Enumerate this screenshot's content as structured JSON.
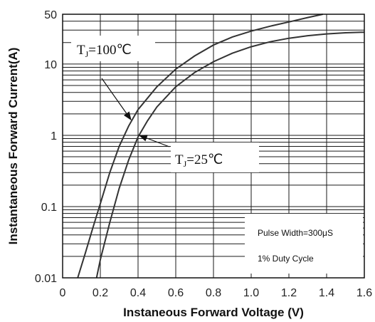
{
  "chart_data": {
    "type": "line",
    "x_axis": {
      "label": "Instaneous Forward Voltage (V)",
      "range": [
        0,
        1.6
      ],
      "ticks": [
        "0",
        "0.2",
        "0.4",
        "0.6",
        "0.8",
        "1.0",
        "1.2",
        "1.4",
        "1.6"
      ]
    },
    "y_axis": {
      "label": "Instantaneous Forward Current(A)",
      "scale": "log",
      "range": [
        0.01,
        50
      ],
      "ticks": [
        "0.01",
        "0.1",
        "1",
        "10",
        "50"
      ]
    },
    "grid": true,
    "series": [
      {
        "name": "TJ=100℃",
        "x": [
          0.08,
          0.12,
          0.16,
          0.2,
          0.25,
          0.3,
          0.35,
          0.4,
          0.5,
          0.6,
          0.7,
          0.8,
          0.9,
          1.0,
          1.1,
          1.2,
          1.3,
          1.38
        ],
        "y": [
          0.01,
          0.022,
          0.05,
          0.11,
          0.3,
          0.7,
          1.35,
          2.3,
          4.8,
          8.5,
          13,
          18.5,
          24,
          29,
          34,
          39,
          45,
          50
        ]
      },
      {
        "name": "TJ=25℃",
        "x": [
          0.18,
          0.2,
          0.25,
          0.3,
          0.35,
          0.4,
          0.45,
          0.5,
          0.6,
          0.7,
          0.8,
          0.9,
          1.0,
          1.1,
          1.2,
          1.3,
          1.4,
          1.5,
          1.6
        ],
        "y": [
          0.01,
          0.018,
          0.06,
          0.18,
          0.45,
          0.95,
          1.6,
          2.5,
          4.8,
          7.6,
          10.8,
          14.2,
          17.5,
          20.5,
          23,
          25,
          26.5,
          27.5,
          28
        ]
      }
    ],
    "annotations": [
      {
        "text_main": "T",
        "text_sub": "J",
        "text_rest": "=100℃"
      },
      {
        "text_main": "T",
        "text_sub": "J",
        "text_rest": "=25℃"
      },
      {
        "text": "Pulse Width=300μS"
      },
      {
        "text": "1% Duty Cycle"
      }
    ]
  }
}
